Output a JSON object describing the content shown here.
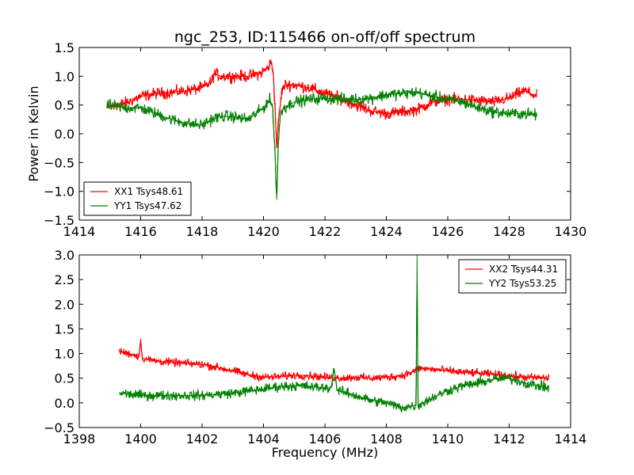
{
  "title": "ngc_253, ID:115466 on-off/off spectrum",
  "chart_data": [
    {
      "type": "line",
      "title": "ngc_253, ID:115466 on-off/off spectrum",
      "xlabel": "",
      "ylabel": "Power in Kelvin",
      "xlim": [
        1414,
        1430
      ],
      "ylim": [
        -1.5,
        1.5
      ],
      "xticks": [
        "1414",
        "1416",
        "1418",
        "1420",
        "1422",
        "1424",
        "1426",
        "1428",
        "1430"
      ],
      "yticks": [
        "−1.5",
        "−1.0",
        "−0.5",
        "0.0",
        "0.5",
        "1.0",
        "1.5"
      ],
      "grid": false,
      "legend_position": "lower-left",
      "series": [
        {
          "name": "XX1 Tsys48.61",
          "color": "#ff0000",
          "noise": 0.05,
          "x": [
            1414.9,
            1415.2,
            1415.6,
            1416.0,
            1416.5,
            1417.0,
            1417.5,
            1418.0,
            1418.3,
            1418.4,
            1418.6,
            1419.0,
            1419.5,
            1419.9,
            1420.15,
            1420.25,
            1420.32,
            1420.38,
            1420.43,
            1420.5,
            1420.6,
            1420.7,
            1421.0,
            1421.5,
            1422.0,
            1422.5,
            1423.0,
            1423.5,
            1424.0,
            1424.5,
            1425.0,
            1425.5,
            1426.0,
            1426.5,
            1427.0,
            1427.5,
            1428.0,
            1428.5,
            1428.9
          ],
          "y": [
            0.45,
            0.5,
            0.55,
            0.65,
            0.7,
            0.72,
            0.75,
            0.8,
            0.9,
            1.05,
            1.0,
            1.0,
            1.0,
            1.05,
            1.15,
            1.25,
            1.05,
            0.4,
            -0.25,
            0.3,
            0.75,
            0.85,
            0.85,
            0.8,
            0.7,
            0.62,
            0.5,
            0.4,
            0.35,
            0.38,
            0.42,
            0.55,
            0.6,
            0.6,
            0.58,
            0.55,
            0.62,
            0.75,
            0.65
          ]
        },
        {
          "name": "YY1 Tsys47.62",
          "color": "#008000",
          "noise": 0.05,
          "x": [
            1414.9,
            1415.5,
            1416.0,
            1416.5,
            1417.0,
            1417.5,
            1418.0,
            1418.3,
            1418.6,
            1419.0,
            1419.5,
            1420.0,
            1420.2,
            1420.3,
            1420.38,
            1420.43,
            1420.48,
            1420.55,
            1420.65,
            1421.0,
            1421.5,
            1422.0,
            1422.5,
            1423.0,
            1423.5,
            1424.0,
            1424.5,
            1425.0,
            1425.5,
            1426.0,
            1426.5,
            1427.0,
            1427.5,
            1428.0,
            1428.5,
            1428.9
          ],
          "y": [
            0.5,
            0.45,
            0.45,
            0.35,
            0.25,
            0.18,
            0.15,
            0.25,
            0.3,
            0.3,
            0.25,
            0.45,
            0.6,
            0.45,
            -0.4,
            -1.15,
            -0.2,
            0.35,
            0.45,
            0.55,
            0.6,
            0.62,
            0.6,
            0.6,
            0.62,
            0.68,
            0.7,
            0.72,
            0.65,
            0.6,
            0.55,
            0.45,
            0.38,
            0.35,
            0.35,
            0.33
          ]
        }
      ]
    },
    {
      "type": "line",
      "title": "",
      "xlabel": "Frequency (MHz)",
      "ylabel": "",
      "xlim": [
        1398,
        1414
      ],
      "ylim": [
        -0.5,
        3.0
      ],
      "xticks": [
        "1398",
        "1400",
        "1402",
        "1404",
        "1406",
        "1408",
        "1410",
        "1412",
        "1414"
      ],
      "yticks": [
        "−0.5",
        "0.0",
        "0.5",
        "1.0",
        "1.5",
        "2.0",
        "2.5",
        "3.0"
      ],
      "grid": false,
      "legend_position": "top-right",
      "series": [
        {
          "name": "XX2 Tsys44.31",
          "color": "#ff0000",
          "noise": 0.04,
          "x": [
            1399.3,
            1399.6,
            1399.95,
            1400.0,
            1400.05,
            1400.5,
            1401.0,
            1401.5,
            1402.0,
            1402.5,
            1403.0,
            1403.5,
            1404.0,
            1404.5,
            1405.0,
            1405.5,
            1406.0,
            1406.5,
            1407.0,
            1407.5,
            1408.0,
            1408.5,
            1408.95,
            1409.05,
            1409.5,
            1410.0,
            1410.5,
            1411.0,
            1411.5,
            1412.0,
            1412.5,
            1413.3
          ],
          "y": [
            1.05,
            1.0,
            0.95,
            1.3,
            0.9,
            0.85,
            0.82,
            0.8,
            0.78,
            0.72,
            0.65,
            0.57,
            0.52,
            0.53,
            0.56,
            0.55,
            0.52,
            0.5,
            0.52,
            0.5,
            0.52,
            0.55,
            0.65,
            0.7,
            0.68,
            0.65,
            0.62,
            0.6,
            0.58,
            0.55,
            0.52,
            0.5
          ]
        },
        {
          "name": "YY2 Tsys53.25",
          "color": "#008000",
          "noise": 0.05,
          "x": [
            1399.3,
            1400.0,
            1401.0,
            1402.0,
            1403.0,
            1404.0,
            1404.5,
            1405.0,
            1405.5,
            1406.0,
            1406.2,
            1406.3,
            1406.4,
            1406.6,
            1407.0,
            1407.5,
            1408.0,
            1408.5,
            1408.97,
            1409.0,
            1409.03,
            1409.5,
            1410.0,
            1410.5,
            1411.0,
            1411.5,
            1412.0,
            1412.5,
            1413.3
          ],
          "y": [
            0.2,
            0.15,
            0.15,
            0.15,
            0.2,
            0.28,
            0.33,
            0.35,
            0.33,
            0.3,
            0.3,
            0.7,
            0.25,
            0.22,
            0.15,
            0.05,
            0.0,
            -0.1,
            -0.05,
            3.0,
            -0.05,
            0.1,
            0.25,
            0.35,
            0.4,
            0.48,
            0.5,
            0.4,
            0.3
          ]
        }
      ]
    }
  ]
}
